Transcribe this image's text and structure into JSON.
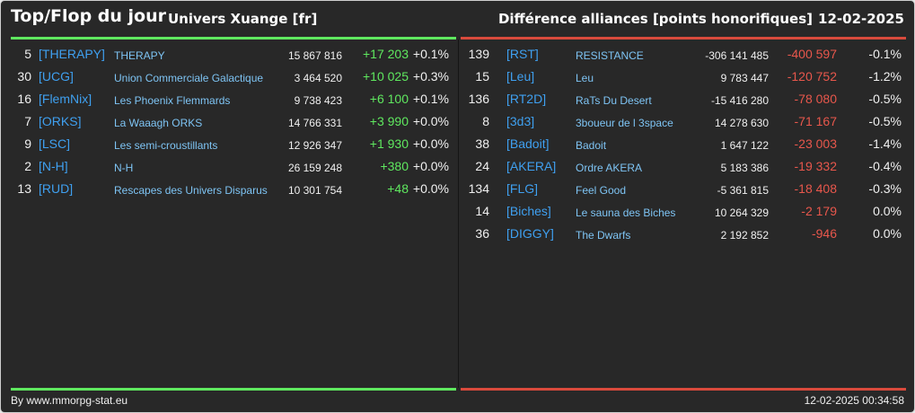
{
  "header": {
    "title": "Top/Flop du jour",
    "universe": "Univers Xuange [fr]",
    "category": "Différence alliances [points honorifiques]",
    "date": "12-02-2025"
  },
  "colors": {
    "up": "#5fe85f",
    "down": "#e8574c",
    "tag": "#3fa0f0",
    "name": "#7ec4f4",
    "background": "#282828"
  },
  "top": [
    {
      "rank": "5",
      "tag": "[THERAPY]",
      "name": "THERAPY",
      "points": "15 867 816",
      "diff": "+17 203",
      "pct": "+0.1%"
    },
    {
      "rank": "30",
      "tag": "[UCG]",
      "name": "Union Commerciale Galactique",
      "points": "3 464 520",
      "diff": "+10 025",
      "pct": "+0.3%"
    },
    {
      "rank": "16",
      "tag": "[FlemNix]",
      "name": "Les Phoenix Flemmards",
      "points": "9 738 423",
      "diff": "+6 100",
      "pct": "+0.1%"
    },
    {
      "rank": "7",
      "tag": "[ORKS]",
      "name": "La Waaagh ORKS",
      "points": "14 766 331",
      "diff": "+3 990",
      "pct": "+0.0%"
    },
    {
      "rank": "9",
      "tag": "[LSC]",
      "name": "Les semi-croustillants",
      "points": "12 926 347",
      "diff": "+1 930",
      "pct": "+0.0%"
    },
    {
      "rank": "2",
      "tag": "[N-H]",
      "name": "N-H",
      "points": "26 159 248",
      "diff": "+380",
      "pct": "+0.0%"
    },
    {
      "rank": "13",
      "tag": "[RUD]",
      "name": "Rescapes des Univers Disparus",
      "points": "10 301 754",
      "diff": "+48",
      "pct": "+0.0%"
    }
  ],
  "flop": [
    {
      "rank": "139",
      "tag": "[RST]",
      "name": "RESISTANCE",
      "points": "-306 141 485",
      "diff": "-400 597",
      "pct": "-0.1%"
    },
    {
      "rank": "15",
      "tag": "[Leu]",
      "name": "Leu",
      "points": "9 783 447",
      "diff": "-120 752",
      "pct": "-1.2%"
    },
    {
      "rank": "136",
      "tag": "[RT2D]",
      "name": "RaTs Du Desert",
      "points": "-15 416 280",
      "diff": "-78 080",
      "pct": "-0.5%"
    },
    {
      "rank": "8",
      "tag": "[3d3]",
      "name": "3boueur de l 3space",
      "points": "14 278 630",
      "diff": "-71 167",
      "pct": "-0.5%"
    },
    {
      "rank": "38",
      "tag": "[Badoit]",
      "name": "Badoit",
      "points": "1 647 122",
      "diff": "-23 003",
      "pct": "-1.4%"
    },
    {
      "rank": "24",
      "tag": "[AKERA]",
      "name": "Ordre AKERA",
      "points": "5 183 386",
      "diff": "-19 332",
      "pct": "-0.4%"
    },
    {
      "rank": "134",
      "tag": "[FLG]",
      "name": "Feel Good",
      "points": "-5 361 815",
      "diff": "-18 408",
      "pct": "-0.3%"
    },
    {
      "rank": "14",
      "tag": "[Biches]",
      "name": "Le sauna des Biches",
      "points": "10 264 329",
      "diff": "-2 179",
      "pct": "0.0%"
    },
    {
      "rank": "36",
      "tag": "[DIGGY]",
      "name": "The Dwarfs",
      "points": "2 192 852",
      "diff": "-946",
      "pct": "0.0%"
    }
  ],
  "footer": {
    "credit": "By www.mmorpg-stat.eu",
    "timestamp": "12-02-2025 00:34:58"
  }
}
